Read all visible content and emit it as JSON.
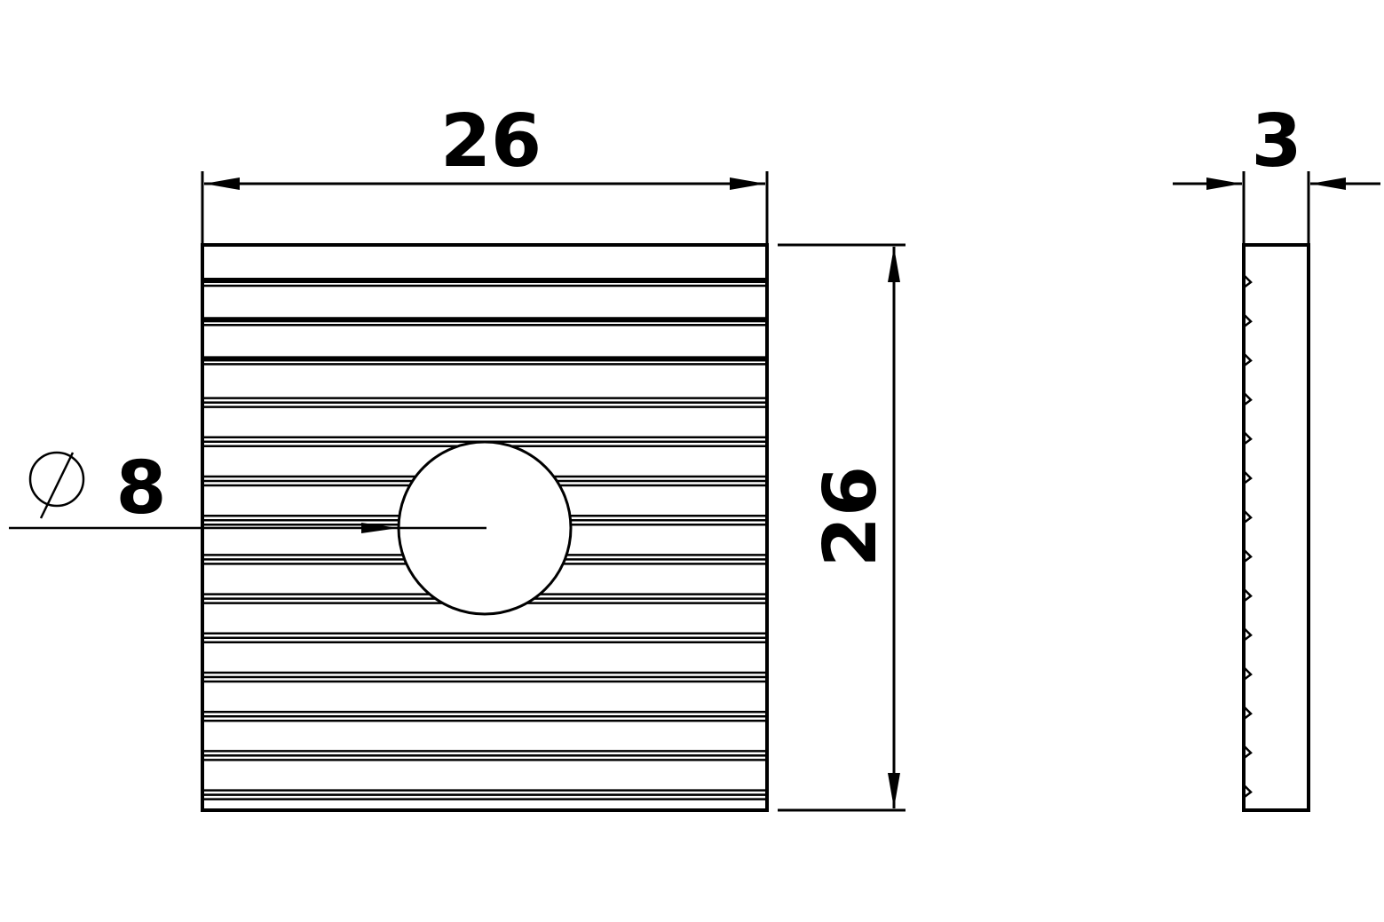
{
  "drawing": {
    "front_view": {
      "width_dimension": "26",
      "height_dimension": "26",
      "hole_dimension": {
        "symbol": "∅",
        "value": "8"
      }
    },
    "side_view": {
      "thickness_dimension": "3"
    }
  },
  "colors": {
    "ink": "#000000",
    "paper": "#ffffff"
  }
}
